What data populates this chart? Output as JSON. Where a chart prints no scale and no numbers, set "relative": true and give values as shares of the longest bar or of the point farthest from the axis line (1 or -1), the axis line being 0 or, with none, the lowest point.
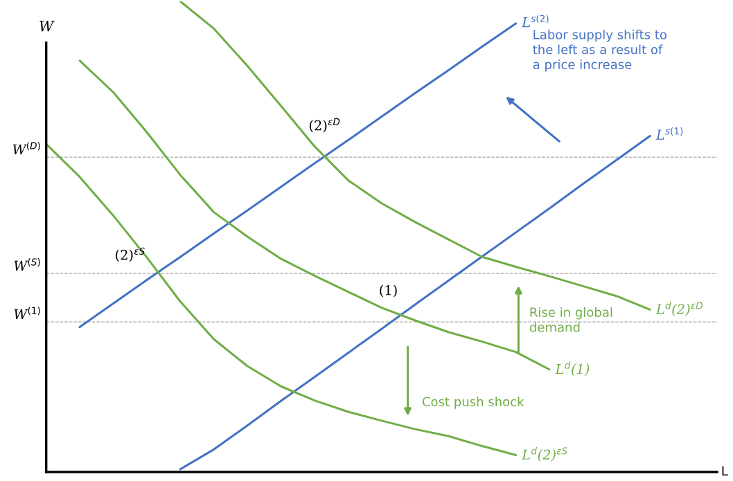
{
  "chart_data": {
    "type": "line",
    "relative": true,
    "xlabel": "L",
    "ylabel": "W",
    "marker": "none",
    "line_style": "solid",
    "categories": [
      null,
      null,
      null,
      null,
      null,
      null,
      null,
      null,
      null,
      null,
      null,
      null,
      null,
      null,
      null,
      null,
      null,
      null,
      null,
      null
    ],
    "series": [
      {
        "name": "L$^{s(2)}$",
        "color": "#4472c4",
        "values": [
          null,
          0.308,
          0.358,
          0.408,
          0.457,
          0.507,
          0.556,
          0.606,
          0.656,
          0.705,
          0.755,
          0.805,
          0.854,
          0.904,
          0.953,
          null,
          null,
          null,
          null,
          null
        ]
      },
      {
        "name": "L$^{s(1)}$",
        "color": "#4472c4",
        "values": [
          null,
          null,
          null,
          null,
          0.006,
          0.048,
          0.099,
          0.151,
          0.202,
          0.253,
          0.304,
          0.356,
          0.407,
          0.458,
          0.509,
          0.56,
          0.612,
          0.663,
          0.714,
          null
        ]
      },
      {
        "name": "L$^{d}$(2)$^{εD}$",
        "color": "#70ad47",
        "values": [
          null,
          null,
          null,
          null,
          1.0,
          0.942,
          0.863,
          0.778,
          0.692,
          0.62,
          0.571,
          0.531,
          0.494,
          0.457,
          0.436,
          0.416,
          0.395,
          0.374,
          0.345,
          null
        ]
      },
      {
        "name": "L$^{d}$(1)",
        "color": "#70ad47",
        "values": [
          null,
          0.874,
          0.807,
          0.722,
          0.631,
          0.552,
          0.5,
          0.453,
          0.417,
          0.383,
          0.349,
          0.322,
          0.297,
          0.277,
          0.255,
          0.218,
          null,
          null,
          null,
          null
        ]
      },
      {
        "name": "L$^{d}$(2)$^{εS}$",
        "color": "#70ad47",
        "values": [
          0.697,
          0.627,
          0.545,
          0.456,
          0.362,
          0.282,
          0.225,
          0.182,
          0.152,
          0.128,
          0.109,
          0.091,
          0.076,
          0.055,
          0.036,
          null,
          null,
          null,
          null,
          null
        ]
      }
    ],
    "ref_lines": [
      {
        "axis": "y",
        "value": 0.669,
        "label": "W$^{(D)}$",
        "color": "#a6a6a6",
        "line_style": "dashed"
      },
      {
        "axis": "y",
        "value": 0.422,
        "label": "W$^{(S)}$",
        "color": "#a6a6a6",
        "line_style": "dashed"
      },
      {
        "axis": "y",
        "value": 0.319,
        "label": "W$^{(1)}$",
        "color": "#a6a6a6",
        "line_style": "dashed"
      }
    ],
    "annotations": [
      "(2)$^{εD}$",
      "(2)$^{εS}$",
      "(1)",
      "Labor supply shifts to\nthe left as a result of\na price increase",
      "Rise in global\ndemand",
      "Cost push shock"
    ]
  }
}
